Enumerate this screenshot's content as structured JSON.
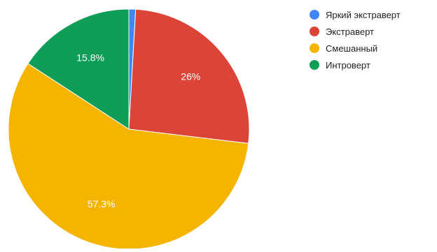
{
  "chart_data": {
    "type": "pie",
    "title": "",
    "legend_position": "right",
    "slices": [
      {
        "label": "Яркий экстраверт",
        "value": 0.9,
        "display": "",
        "color": "#4285f4"
      },
      {
        "label": "Экстраверт",
        "value": 26.0,
        "display": "26%",
        "color": "#db4437"
      },
      {
        "label": "Смешанный",
        "value": 57.3,
        "display": "57.3%",
        "color": "#f4b400"
      },
      {
        "label": "Интроверт",
        "value": 15.8,
        "display": "15.8%",
        "color": "#0f9d58"
      }
    ]
  }
}
